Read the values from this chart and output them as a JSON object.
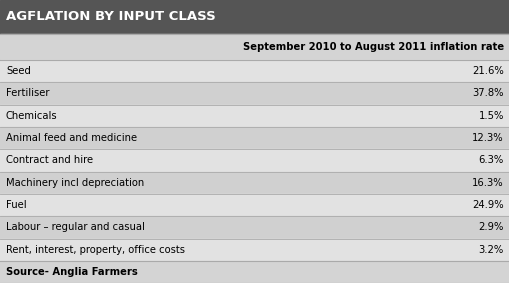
{
  "title": "AGFLATION BY INPUT CLASS",
  "column_header": "September 2010 to August 2011 inflation rate",
  "rows": [
    {
      "label": "Seed",
      "value": "21.6%"
    },
    {
      "label": "Fertiliser",
      "value": "37.8%"
    },
    {
      "label": "Chemicals",
      "value": "1.5%"
    },
    {
      "label": "Animal feed and medicine",
      "value": "12.3%"
    },
    {
      "label": "Contract and hire",
      "value": "6.3%"
    },
    {
      "label": "Machinery incl depreciation",
      "value": "16.3%"
    },
    {
      "label": "Fuel",
      "value": "24.9%"
    },
    {
      "label": "Labour – regular and casual",
      "value": "2.9%"
    },
    {
      "label": "Rent, interest, property, office costs",
      "value": "3.2%"
    }
  ],
  "footer": "Source- Anglia Farmers",
  "title_bg": "#555555",
  "title_color": "#ffffff",
  "header_bg": "#d4d4d4",
  "row_colors": [
    "#e2e2e2",
    "#d0d0d0"
  ],
  "footer_bg": "#d4d4d4",
  "divider_color": "#aaaaaa",
  "text_color": "#000000",
  "header_text_color": "#000000",
  "title_fontsize": 9.5,
  "header_fontsize": 7.2,
  "row_fontsize": 7.2,
  "footer_fontsize": 7.2
}
